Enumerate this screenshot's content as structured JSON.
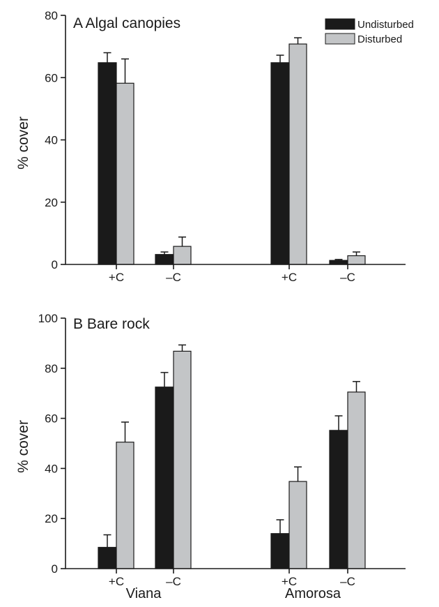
{
  "legend": [
    {
      "name": "Undisturbed",
      "color": "#1a1a1a"
    },
    {
      "name": "Disturbed",
      "color": "#c3c5c7"
    }
  ],
  "chart_data": [
    {
      "type": "bar",
      "title": "A Algal canopies",
      "ylabel": "% cover",
      "ylim": [
        0,
        80
      ],
      "yticks": [
        0,
        20,
        40,
        60,
        80
      ],
      "categories": [
        "+C",
        "–C",
        "+C",
        "–C"
      ],
      "groups": [
        "Viana",
        "Viana",
        "Amorosa",
        "Amorosa"
      ],
      "series": [
        {
          "name": "Undisturbed",
          "values": [
            64.8,
            3.2,
            64.8,
            1.3
          ],
          "errors": [
            3.2,
            0.8,
            2.4,
            0.3
          ]
        },
        {
          "name": "Disturbed",
          "values": [
            58.2,
            5.8,
            70.8,
            2.8
          ],
          "errors": [
            7.8,
            3.0,
            2.0,
            1.2
          ]
        }
      ]
    },
    {
      "type": "bar",
      "title": "B Bare rock",
      "ylabel": "% cover",
      "ylim": [
        0,
        100
      ],
      "yticks": [
        0,
        20,
        40,
        60,
        80,
        100
      ],
      "categories": [
        "+C",
        "–C",
        "+C",
        "–C"
      ],
      "groups": [
        "Viana",
        "Viana",
        "Amorosa",
        "Amorosa"
      ],
      "group_labels": [
        "Viana",
        "Amorosa"
      ],
      "series": [
        {
          "name": "Undisturbed",
          "values": [
            8.5,
            72.5,
            14.0,
            55.2
          ],
          "errors": [
            5.0,
            5.8,
            5.5,
            5.8
          ]
        },
        {
          "name": "Disturbed",
          "values": [
            50.5,
            86.8,
            34.8,
            70.5
          ],
          "errors": [
            8.0,
            2.5,
            5.8,
            4.2
          ]
        }
      ]
    }
  ]
}
